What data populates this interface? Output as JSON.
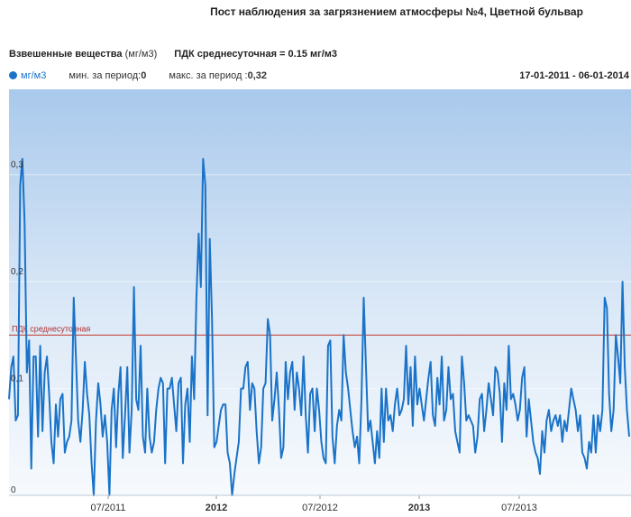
{
  "header": {
    "title": "Пост наблюдения за загрязнением атмосферы №4, Цветной бульвар",
    "metric": "Взвешенные вещества",
    "metric_unit": "(мг/м3)",
    "norm_text": "ПДК среднесуточная = 0.15 мг/м3",
    "legend_unit": "мг/м3",
    "min_label": "мин. за период:",
    "min_value": "0",
    "max_label": "макс. за период :",
    "max_value": "0,32",
    "date_range": "17-01-2011 - 06-01-2014"
  },
  "chart_data": {
    "type": "line",
    "x_ticks": [
      {
        "label": "07/2011",
        "bold": false
      },
      {
        "label": "2012",
        "bold": true
      },
      {
        "label": "07/2012",
        "bold": false
      },
      {
        "label": "2013",
        "bold": true
      },
      {
        "label": "07/2013",
        "bold": false
      }
    ],
    "y_ticks": [
      "0",
      "0,1",
      "0,2",
      "0,3"
    ],
    "ylim": [
      0,
      0.38
    ],
    "threshold": {
      "label": "ПДК среднесуточная",
      "value": 0.15
    },
    "series": [
      {
        "name": "мг/м3",
        "color": "#1a73c8",
        "values": [
          0.09,
          0.12,
          0.13,
          0.07,
          0.075,
          0.29,
          0.315,
          0.255,
          0.115,
          0.145,
          0.025,
          0.13,
          0.13,
          0.055,
          0.14,
          0.06,
          0.115,
          0.13,
          0.095,
          0.05,
          0.03,
          0.085,
          0.055,
          0.09,
          0.095,
          0.04,
          0.05,
          0.055,
          0.07,
          0.185,
          0.13,
          0.07,
          0.05,
          0.08,
          0.125,
          0.095,
          0.075,
          0.03,
          0.0,
          0.07,
          0.105,
          0.085,
          0.055,
          0.075,
          0.05,
          0.0,
          0.08,
          0.1,
          0.045,
          0.095,
          0.12,
          0.035,
          0.075,
          0.12,
          0.04,
          0.08,
          0.195,
          0.09,
          0.08,
          0.14,
          0.055,
          0.04,
          0.1,
          0.055,
          0.04,
          0.05,
          0.08,
          0.1,
          0.11,
          0.105,
          0.03,
          0.1,
          0.1,
          0.11,
          0.085,
          0.06,
          0.105,
          0.11,
          0.03,
          0.085,
          0.1,
          0.05,
          0.13,
          0.09,
          0.185,
          0.245,
          0.195,
          0.315,
          0.29,
          0.075,
          0.24,
          0.165,
          0.045,
          0.05,
          0.065,
          0.08,
          0.085,
          0.085,
          0.04,
          0.03,
          0.0,
          0.02,
          0.035,
          0.05,
          0.1,
          0.1,
          0.12,
          0.125,
          0.08,
          0.105,
          0.1,
          0.06,
          0.03,
          0.045,
          0.1,
          0.105,
          0.165,
          0.15,
          0.07,
          0.09,
          0.115,
          0.08,
          0.035,
          0.045,
          0.125,
          0.09,
          0.115,
          0.125,
          0.08,
          0.115,
          0.1,
          0.075,
          0.13,
          0.075,
          0.04,
          0.095,
          0.1,
          0.06,
          0.1,
          0.08,
          0.05,
          0.035,
          0.03,
          0.14,
          0.145,
          0.055,
          0.03,
          0.065,
          0.08,
          0.07,
          0.15,
          0.115,
          0.1,
          0.08,
          0.06,
          0.045,
          0.055,
          0.03,
          0.09,
          0.185,
          0.12,
          0.06,
          0.07,
          0.05,
          0.03,
          0.06,
          0.035,
          0.1,
          0.05,
          0.1,
          0.07,
          0.075,
          0.06,
          0.085,
          0.1,
          0.075,
          0.08,
          0.09,
          0.14,
          0.085,
          0.12,
          0.065,
          0.13,
          0.085,
          0.1,
          0.085,
          0.07,
          0.09,
          0.11,
          0.125,
          0.075,
          0.065,
          0.11,
          0.085,
          0.13,
          0.07,
          0.08,
          0.12,
          0.09,
          0.095,
          0.06,
          0.05,
          0.04,
          0.13,
          0.105,
          0.07,
          0.075,
          0.07,
          0.065,
          0.04,
          0.055,
          0.09,
          0.095,
          0.06,
          0.08,
          0.105,
          0.09,
          0.075,
          0.12,
          0.115,
          0.095,
          0.05,
          0.105,
          0.08,
          0.14,
          0.09,
          0.095,
          0.085,
          0.07,
          0.08,
          0.11,
          0.12,
          0.055,
          0.09,
          0.07,
          0.05,
          0.04,
          0.035,
          0.02,
          0.06,
          0.04,
          0.07,
          0.08,
          0.06,
          0.07,
          0.075,
          0.065,
          0.075,
          0.05,
          0.07,
          0.06,
          0.08,
          0.1,
          0.09,
          0.08,
          0.06,
          0.075,
          0.04,
          0.035,
          0.025,
          0.05,
          0.04,
          0.075,
          0.04,
          0.075,
          0.06,
          0.08,
          0.185,
          0.175,
          0.095,
          0.06,
          0.08,
          0.15,
          0.13,
          0.105,
          0.2,
          0.12,
          0.08,
          0.055
        ]
      }
    ]
  }
}
